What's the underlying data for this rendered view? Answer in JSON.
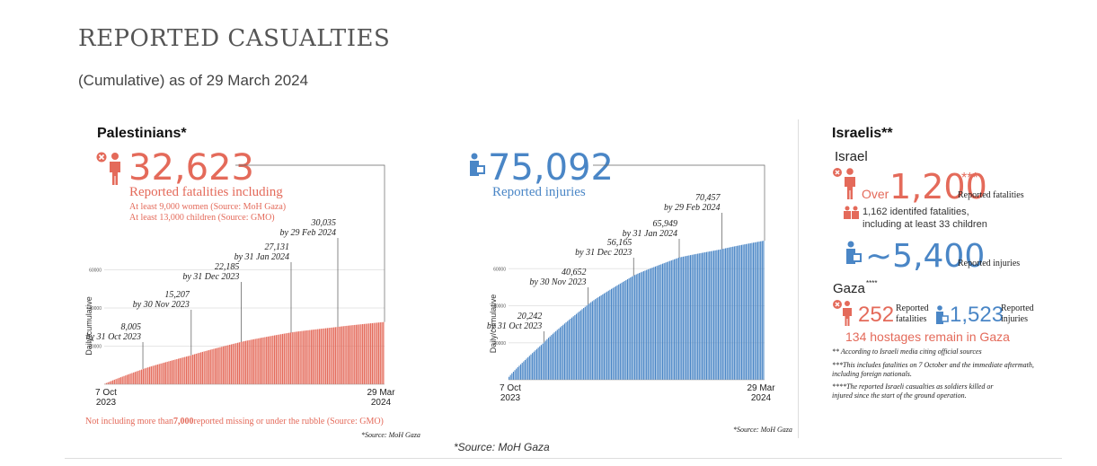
{
  "title": "REPORTED CASUALTIES",
  "subtitle": "(Cumulative) as of 29 March 2024",
  "source_bottom": "*Source: MoH Gaza",
  "colors": {
    "red": "#e46a5a",
    "blue": "#4a86c6"
  },
  "palestinians": {
    "heading": "Palestinians*",
    "fatalities_value": "32,623",
    "fatalities_label": "Reported fatalities including",
    "women_note": "At least 9,000 women (Source: MoH Gaza)",
    "children_note": "At least 13,000 children (Source: GMO)",
    "missing_note_a": "Not including more than",
    "missing_note_value": "7,000",
    "missing_note_b": "reported missing or under the rubble (Source: GMO)",
    "source": "*Source: MoH Gaza",
    "injuries_value": "75,092",
    "injuries_label": "Reported injuries",
    "injuries_source": "*Source: MoH Gaza"
  },
  "israelis": {
    "heading": "Israelis**",
    "israel_label": "Israel",
    "over_label": "Over",
    "fatalities_value": "1,200",
    "fatalities_stars": "***",
    "fatalities_label": "Reported fatalities",
    "identified_line1": "1,162 identifed fatalities,",
    "identified_line2": "including at least 33 children",
    "injuries_value": "~5,400",
    "injuries_label": "Reported injuries",
    "gaza_label": "Gaza",
    "gaza_stars": "****",
    "gaza_fatalities_value": "252",
    "gaza_fatalities_label_1": "Reported",
    "gaza_fatalities_label_2": "fatalities",
    "gaza_injuries_value": "1,523",
    "gaza_injuries_label_1": "Reported",
    "gaza_injuries_label_2": "injuries",
    "hostages": "134 hostages remain in Gaza",
    "note1": "** According to Israeli media citing official sources",
    "note2a": "***This includes fatalities on 7 October and the immediate aftermath,",
    "note2b": "including foreign nationals.",
    "note3a": "****The reported Israeli casualties as soldiers killed or",
    "note3b": "injured since the start of the ground operation."
  },
  "chart_data": [
    {
      "type": "bar",
      "name": "fatalities",
      "ylabel": "Daily/cumulative",
      "xlabel": "",
      "x_start_label": [
        "7 Oct",
        "2023"
      ],
      "x_end_label": [
        "29 Mar",
        "2024"
      ],
      "ylim": [
        0,
        80000
      ],
      "y_ticks": [
        "20000",
        "40000",
        "60000"
      ],
      "color": "#e46a5a",
      "x": [
        "2023-10-07",
        "2023-10-31",
        "2023-11-30",
        "2023-12-31",
        "2024-01-31",
        "2024-02-29",
        "2024-03-29"
      ],
      "values": [
        232,
        8005,
        15207,
        22185,
        27131,
        30035,
        32623
      ],
      "annotations": [
        {
          "x": "2023-10-31",
          "value": "8,005",
          "label": "by 31 Oct 2023"
        },
        {
          "x": "2023-11-30",
          "value": "15,207",
          "label": "by 30 Nov 2023"
        },
        {
          "x": "2023-12-31",
          "value": "22,185",
          "label": "by 31 Dec 2023"
        },
        {
          "x": "2024-01-31",
          "value": "27,131",
          "label": "by 31 Jan 2024"
        },
        {
          "x": "2024-02-29",
          "value": "30,035",
          "label": "by 29 Feb 2024"
        }
      ]
    },
    {
      "type": "bar",
      "name": "injuries",
      "ylabel": "Daily/cumulative",
      "xlabel": "",
      "x_start_label": [
        "7 Oct",
        "2023"
      ],
      "x_end_label": [
        "29 Mar",
        "2024"
      ],
      "ylim": [
        0,
        80000
      ],
      "y_ticks": [
        "20000",
        "40000",
        "60000"
      ],
      "color": "#4a86c6",
      "x": [
        "2023-10-07",
        "2023-10-31",
        "2023-11-30",
        "2023-12-31",
        "2024-01-31",
        "2024-02-29",
        "2024-03-29"
      ],
      "values": [
        1610,
        20242,
        40652,
        56165,
        65949,
        70457,
        75092
      ],
      "annotations": [
        {
          "x": "2023-10-31",
          "value": "20,242",
          "label": "by 31 Oct 2023"
        },
        {
          "x": "2023-11-30",
          "value": "40,652",
          "label": "by 30 Nov 2023"
        },
        {
          "x": "2023-12-31",
          "value": "56,165",
          "label": "by 31 Dec 2023"
        },
        {
          "x": "2024-01-31",
          "value": "65,949",
          "label": "by 31 Jan 2024"
        },
        {
          "x": "2024-02-29",
          "value": "70,457",
          "label": "by 29 Feb 2024"
        }
      ]
    }
  ]
}
